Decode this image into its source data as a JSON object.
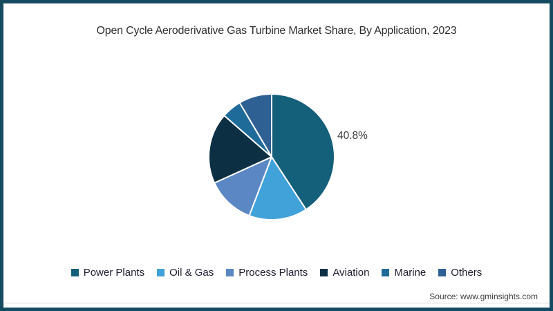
{
  "chart_data": {
    "type": "pie",
    "title": "Open Cycle Aeroderivative Gas Turbine Market Share, By Application, 2023",
    "categories": [
      "Power Plants",
      "Oil & Gas",
      "Process Plants",
      "Aviation",
      "Marine",
      "Others"
    ],
    "values": [
      40.8,
      15.0,
      12.4,
      18.2,
      5.1,
      8.5
    ],
    "colors": [
      "#145f79",
      "#41a1d9",
      "#5b88c5",
      "#0d2f43",
      "#1e6b99",
      "#2f6093"
    ],
    "start_angle_deg": 0,
    "direction": "clockwise",
    "legend_position": "bottom",
    "separator_color": "#ffffff",
    "shown_label": {
      "category": "Power Plants",
      "text": "40.8%"
    }
  },
  "footer": {
    "source": "Source: www.gminsights.com"
  },
  "frame": {
    "border_color": "#144b60",
    "background": "#ffffff"
  }
}
